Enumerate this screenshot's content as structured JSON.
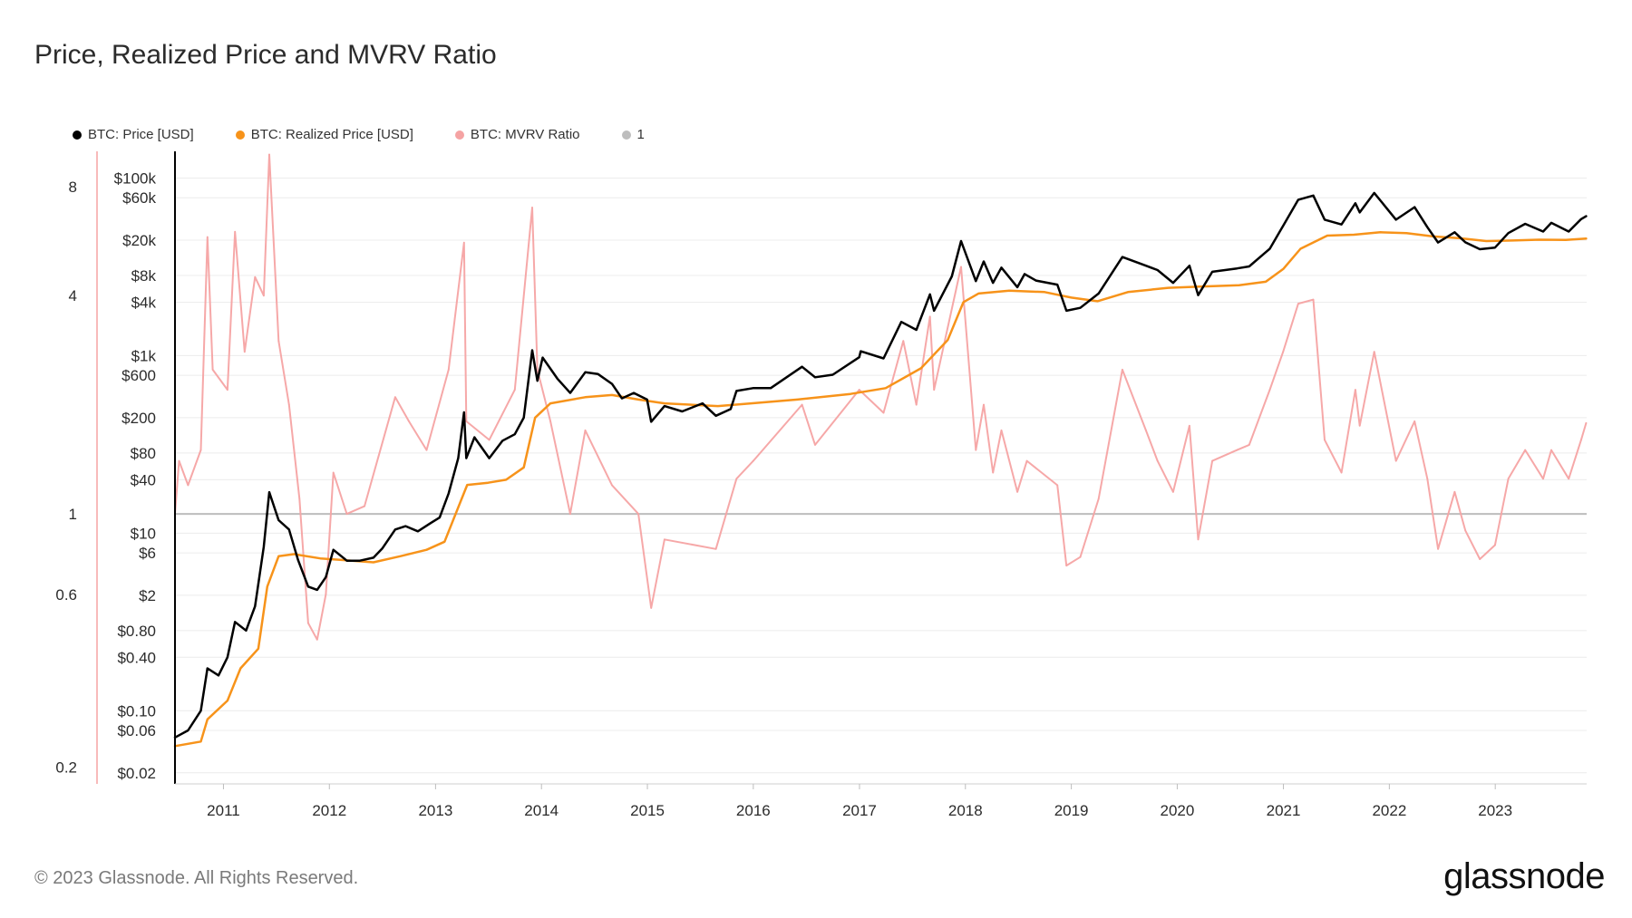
{
  "page": {
    "title": "Price, Realized Price and MVRV Ratio",
    "footer": "© 2023 Glassnode. All Rights Reserved.",
    "brand": "glassnode"
  },
  "legend": [
    {
      "label": "BTC: Price [USD]",
      "color": "#000000"
    },
    {
      "label": "BTC: Realized Price [USD]",
      "color": "#f7931a"
    },
    {
      "label": "BTC: MVRV Ratio",
      "color": "#f5a3a3"
    },
    {
      "label": "1",
      "color": "#bdbdbd"
    }
  ],
  "chart_data": {
    "type": "line",
    "y_scale": "log",
    "x_ticks": [
      "2011",
      "2012",
      "2013",
      "2014",
      "2015",
      "2016",
      "2017",
      "2018",
      "2019",
      "2020",
      "2021",
      "2022",
      "2023"
    ],
    "price_axis_ticks": [
      "$100k",
      "$60k",
      "$20k",
      "$8k",
      "$4k",
      "$1k",
      "$600",
      "$200",
      "$80",
      "$40",
      "$10",
      "$6",
      "$2",
      "$0.80",
      "$0.40",
      "$0.10",
      "$0.06",
      "$0.02"
    ],
    "price_axis_values": [
      100000,
      60000,
      20000,
      8000,
      4000,
      1000,
      600,
      200,
      80,
      40,
      10,
      6,
      2,
      0.8,
      0.4,
      0.1,
      0.06,
      0.02
    ],
    "mvrv_axis_ticks": [
      "8",
      "4",
      "1",
      "0.6",
      "0.2"
    ],
    "mvrv_axis_values": [
      8,
      4,
      1,
      0.6,
      0.2
    ],
    "price_ylim": [
      0.015,
      200000
    ],
    "mvrv_ylim": [
      0.18,
      10
    ],
    "grid": true,
    "legend_position": "top-left",
    "reference_line": {
      "name": "1",
      "value": 1
    },
    "series": [
      {
        "name": "BTC: Price [USD]",
        "color": "#000000",
        "points": [
          [
            "2010-07-18",
            0.05
          ],
          [
            "2010-09-01",
            0.06
          ],
          [
            "2010-10-15",
            0.1
          ],
          [
            "2010-11-07",
            0.3
          ],
          [
            "2010-12-15",
            0.25
          ],
          [
            "2011-01-15",
            0.4
          ],
          [
            "2011-02-10",
            1.0
          ],
          [
            "2011-03-20",
            0.8
          ],
          [
            "2011-04-20",
            1.5
          ],
          [
            "2011-05-20",
            7
          ],
          [
            "2011-06-08",
            29
          ],
          [
            "2011-07-10",
            14
          ],
          [
            "2011-08-15",
            11
          ],
          [
            "2011-09-15",
            5
          ],
          [
            "2011-10-20",
            2.5
          ],
          [
            "2011-11-20",
            2.3
          ],
          [
            "2011-12-20",
            3.2
          ],
          [
            "2012-01-15",
            6.5
          ],
          [
            "2012-03-01",
            4.9
          ],
          [
            "2012-04-15",
            4.9
          ],
          [
            "2012-06-01",
            5.3
          ],
          [
            "2012-07-01",
            6.7
          ],
          [
            "2012-08-15",
            11
          ],
          [
            "2012-09-20",
            12
          ],
          [
            "2012-11-01",
            10.5
          ],
          [
            "2012-12-15",
            13
          ],
          [
            "2013-01-15",
            15
          ],
          [
            "2013-02-15",
            28
          ],
          [
            "2013-03-20",
            70
          ],
          [
            "2013-04-09",
            230
          ],
          [
            "2013-04-17",
            70
          ],
          [
            "2013-05-15",
            120
          ],
          [
            "2013-07-05",
            70
          ],
          [
            "2013-08-20",
            110
          ],
          [
            "2013-10-01",
            130
          ],
          [
            "2013-11-01",
            200
          ],
          [
            "2013-11-30",
            1150
          ],
          [
            "2013-12-18",
            520
          ],
          [
            "2014-01-05",
            950
          ],
          [
            "2014-02-25",
            550
          ],
          [
            "2014-04-10",
            380
          ],
          [
            "2014-06-01",
            650
          ],
          [
            "2014-07-15",
            620
          ],
          [
            "2014-09-01",
            480
          ],
          [
            "2014-10-05",
            330
          ],
          [
            "2014-11-15",
            380
          ],
          [
            "2014-12-31",
            320
          ],
          [
            "2015-01-14",
            180
          ],
          [
            "2015-03-01",
            270
          ],
          [
            "2015-05-01",
            235
          ],
          [
            "2015-07-10",
            290
          ],
          [
            "2015-08-25",
            210
          ],
          [
            "2015-10-15",
            250
          ],
          [
            "2015-11-04",
            400
          ],
          [
            "2015-12-31",
            430
          ],
          [
            "2016-03-01",
            430
          ],
          [
            "2016-06-17",
            750
          ],
          [
            "2016-08-01",
            570
          ],
          [
            "2016-10-01",
            610
          ],
          [
            "2016-12-31",
            960
          ],
          [
            "2017-01-05",
            1120
          ],
          [
            "2017-03-25",
            930
          ],
          [
            "2017-05-25",
            2400
          ],
          [
            "2017-07-16",
            1950
          ],
          [
            "2017-09-01",
            4900
          ],
          [
            "2017-09-15",
            3200
          ],
          [
            "2017-11-15",
            7800
          ],
          [
            "2017-12-17",
            19500
          ],
          [
            "2018-02-06",
            6900
          ],
          [
            "2018-03-05",
            11500
          ],
          [
            "2018-04-06",
            6600
          ],
          [
            "2018-05-05",
            9800
          ],
          [
            "2018-06-29",
            5900
          ],
          [
            "2018-07-24",
            8300
          ],
          [
            "2018-09-01",
            7000
          ],
          [
            "2018-11-14",
            6300
          ],
          [
            "2018-12-15",
            3200
          ],
          [
            "2019-02-01",
            3450
          ],
          [
            "2019-04-05",
            5000
          ],
          [
            "2019-06-26",
            12900
          ],
          [
            "2019-09-15",
            10300
          ],
          [
            "2019-10-25",
            9200
          ],
          [
            "2019-12-18",
            6600
          ],
          [
            "2020-02-12",
            10300
          ],
          [
            "2020-03-13",
            4800
          ],
          [
            "2020-05-01",
            8800
          ],
          [
            "2020-07-25",
            9600
          ],
          [
            "2020-09-05",
            10100
          ],
          [
            "2020-11-15",
            16000
          ],
          [
            "2020-12-31",
            29000
          ],
          [
            "2021-02-21",
            57000
          ],
          [
            "2021-04-14",
            63500
          ],
          [
            "2021-05-23",
            34000
          ],
          [
            "2021-07-20",
            30000
          ],
          [
            "2021-09-06",
            52000
          ],
          [
            "2021-09-21",
            41000
          ],
          [
            "2021-11-10",
            68000
          ],
          [
            "2022-01-24",
            34000
          ],
          [
            "2022-03-29",
            47000
          ],
          [
            "2022-05-12",
            28000
          ],
          [
            "2022-06-18",
            18800
          ],
          [
            "2022-08-14",
            24500
          ],
          [
            "2022-09-20",
            18900
          ],
          [
            "2022-11-09",
            15800
          ],
          [
            "2022-12-31",
            16500
          ],
          [
            "2023-02-15",
            24000
          ],
          [
            "2023-04-14",
            30500
          ],
          [
            "2023-06-15",
            25000
          ],
          [
            "2023-07-13",
            31300
          ],
          [
            "2023-09-11",
            25000
          ],
          [
            "2023-10-24",
            34500
          ],
          [
            "2023-11-10",
            37200
          ]
        ]
      },
      {
        "name": "BTC: Realized Price [USD]",
        "color": "#f7931a",
        "points": [
          [
            "2010-07-18",
            0.04
          ],
          [
            "2010-10-15",
            0.045
          ],
          [
            "2010-11-07",
            0.08
          ],
          [
            "2011-01-15",
            0.13
          ],
          [
            "2011-03-01",
            0.3
          ],
          [
            "2011-05-01",
            0.5
          ],
          [
            "2011-06-01",
            2.5
          ],
          [
            "2011-07-10",
            5.5
          ],
          [
            "2011-09-01",
            5.8
          ],
          [
            "2011-12-01",
            5.2
          ],
          [
            "2012-06-01",
            4.7
          ],
          [
            "2012-09-01",
            5.5
          ],
          [
            "2012-12-01",
            6.5
          ],
          [
            "2013-02-01",
            8
          ],
          [
            "2013-04-20",
            35
          ],
          [
            "2013-07-01",
            37
          ],
          [
            "2013-09-01",
            40
          ],
          [
            "2013-11-01",
            55
          ],
          [
            "2013-12-10",
            200
          ],
          [
            "2014-02-01",
            290
          ],
          [
            "2014-06-01",
            340
          ],
          [
            "2014-09-01",
            360
          ],
          [
            "2014-12-01",
            320
          ],
          [
            "2015-03-01",
            290
          ],
          [
            "2015-09-01",
            270
          ],
          [
            "2015-12-01",
            285
          ],
          [
            "2016-06-01",
            320
          ],
          [
            "2016-12-01",
            370
          ],
          [
            "2017-04-01",
            430
          ],
          [
            "2017-08-01",
            720
          ],
          [
            "2017-11-01",
            1500
          ],
          [
            "2017-12-25",
            4000
          ],
          [
            "2018-02-15",
            5000
          ],
          [
            "2018-06-01",
            5400
          ],
          [
            "2018-10-01",
            5200
          ],
          [
            "2019-01-01",
            4500
          ],
          [
            "2019-04-01",
            4100
          ],
          [
            "2019-07-15",
            5200
          ],
          [
            "2019-12-01",
            5800
          ],
          [
            "2020-03-20",
            6000
          ],
          [
            "2020-08-01",
            6200
          ],
          [
            "2020-11-01",
            6800
          ],
          [
            "2021-01-01",
            9500
          ],
          [
            "2021-03-01",
            16000
          ],
          [
            "2021-06-01",
            22500
          ],
          [
            "2021-09-01",
            23000
          ],
          [
            "2021-12-01",
            24500
          ],
          [
            "2022-03-01",
            24000
          ],
          [
            "2022-06-01",
            22000
          ],
          [
            "2022-09-01",
            21000
          ],
          [
            "2022-12-01",
            19500
          ],
          [
            "2023-03-01",
            19800
          ],
          [
            "2023-06-01",
            20200
          ],
          [
            "2023-09-01",
            20100
          ],
          [
            "2023-11-10",
            20800
          ]
        ]
      },
      {
        "name": "BTC: MVRV Ratio",
        "color": "#f5a3a3",
        "points": [
          [
            "2010-07-18",
            1.0
          ],
          [
            "2010-08-01",
            1.4
          ],
          [
            "2010-09-01",
            1.2
          ],
          [
            "2010-10-15",
            1.5
          ],
          [
            "2010-11-07",
            5.8
          ],
          [
            "2010-11-25",
            2.5
          ],
          [
            "2011-01-15",
            2.2
          ],
          [
            "2011-02-10",
            6.0
          ],
          [
            "2011-03-15",
            2.8
          ],
          [
            "2011-04-20",
            4.5
          ],
          [
            "2011-05-20",
            4.0
          ],
          [
            "2011-06-08",
            9.8
          ],
          [
            "2011-07-10",
            3.0
          ],
          [
            "2011-08-15",
            2.0
          ],
          [
            "2011-09-20",
            1.1
          ],
          [
            "2011-10-20",
            0.5
          ],
          [
            "2011-11-20",
            0.45
          ],
          [
            "2011-12-20",
            0.6
          ],
          [
            "2012-01-15",
            1.3
          ],
          [
            "2012-03-01",
            1.0
          ],
          [
            "2012-05-01",
            1.05
          ],
          [
            "2012-08-15",
            2.1
          ],
          [
            "2012-10-01",
            1.8
          ],
          [
            "2012-12-01",
            1.5
          ],
          [
            "2013-02-15",
            2.5
          ],
          [
            "2013-04-09",
            5.6
          ],
          [
            "2013-04-17",
            1.8
          ],
          [
            "2013-07-05",
            1.6
          ],
          [
            "2013-10-01",
            2.2
          ],
          [
            "2013-11-30",
            7.0
          ],
          [
            "2013-12-18",
            2.5
          ],
          [
            "2014-02-01",
            1.8
          ],
          [
            "2014-04-10",
            1.0
          ],
          [
            "2014-06-01",
            1.7
          ],
          [
            "2014-09-01",
            1.2
          ],
          [
            "2014-12-01",
            1.0
          ],
          [
            "2015-01-14",
            0.55
          ],
          [
            "2015-03-01",
            0.85
          ],
          [
            "2015-08-25",
            0.8
          ],
          [
            "2015-11-04",
            1.25
          ],
          [
            "2016-01-01",
            1.4
          ],
          [
            "2016-06-17",
            2.0
          ],
          [
            "2016-08-01",
            1.55
          ],
          [
            "2016-12-31",
            2.2
          ],
          [
            "2017-03-25",
            1.9
          ],
          [
            "2017-06-01",
            3.0
          ],
          [
            "2017-07-16",
            2.0
          ],
          [
            "2017-09-01",
            3.5
          ],
          [
            "2017-09-15",
            2.2
          ],
          [
            "2017-12-17",
            4.8
          ],
          [
            "2018-02-06",
            1.5
          ],
          [
            "2018-03-05",
            2.0
          ],
          [
            "2018-04-06",
            1.3
          ],
          [
            "2018-05-05",
            1.7
          ],
          [
            "2018-06-29",
            1.15
          ],
          [
            "2018-08-01",
            1.4
          ],
          [
            "2018-11-14",
            1.2
          ],
          [
            "2018-12-15",
            0.72
          ],
          [
            "2019-02-01",
            0.76
          ],
          [
            "2019-04-05",
            1.1
          ],
          [
            "2019-06-26",
            2.5
          ],
          [
            "2019-09-15",
            1.7
          ],
          [
            "2019-10-25",
            1.4
          ],
          [
            "2019-12-18",
            1.15
          ],
          [
            "2020-02-12",
            1.75
          ],
          [
            "2020-03-13",
            0.85
          ],
          [
            "2020-05-01",
            1.4
          ],
          [
            "2020-07-25",
            1.5
          ],
          [
            "2020-09-05",
            1.55
          ],
          [
            "2020-11-15",
            2.2
          ],
          [
            "2020-12-31",
            2.8
          ],
          [
            "2021-02-21",
            3.8
          ],
          [
            "2021-04-14",
            3.9
          ],
          [
            "2021-05-23",
            1.6
          ],
          [
            "2021-07-20",
            1.3
          ],
          [
            "2021-09-06",
            2.2
          ],
          [
            "2021-09-21",
            1.75
          ],
          [
            "2021-11-10",
            2.8
          ],
          [
            "2022-01-24",
            1.4
          ],
          [
            "2022-03-29",
            1.8
          ],
          [
            "2022-05-12",
            1.25
          ],
          [
            "2022-06-18",
            0.8
          ],
          [
            "2022-08-14",
            1.15
          ],
          [
            "2022-09-20",
            0.9
          ],
          [
            "2022-11-09",
            0.75
          ],
          [
            "2022-12-31",
            0.82
          ],
          [
            "2023-02-15",
            1.25
          ],
          [
            "2023-04-14",
            1.5
          ],
          [
            "2023-06-15",
            1.25
          ],
          [
            "2023-07-13",
            1.5
          ],
          [
            "2023-09-11",
            1.25
          ],
          [
            "2023-10-24",
            1.6
          ],
          [
            "2023-11-10",
            1.78
          ]
        ]
      }
    ]
  }
}
